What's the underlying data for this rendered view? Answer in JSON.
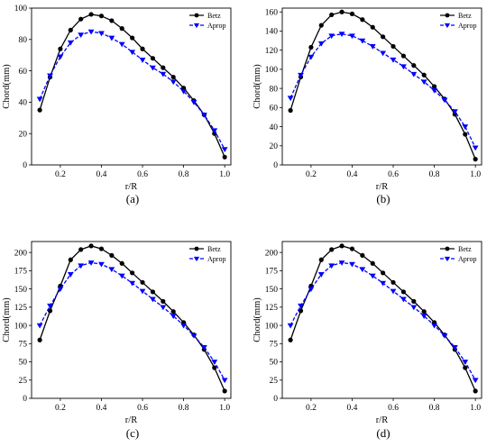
{
  "chart_data": [
    {
      "type": "line",
      "caption": "(a)",
      "xlabel": "r/R",
      "ylabel": "Chord(mm)",
      "xlim": [
        0.06,
        1.03
      ],
      "ylim": [
        0,
        100
      ],
      "xticks": [
        0.2,
        0.4,
        0.6,
        0.8,
        1.0
      ],
      "xtick_labels": [
        "0.2",
        "0.4",
        "0.6",
        "0.8",
        "1.0"
      ],
      "yticks": [
        0,
        20,
        40,
        60,
        80,
        100
      ],
      "ytick_labels": [
        "0",
        "20",
        "40",
        "60",
        "80",
        "100"
      ],
      "legend_position": "top-right",
      "series": [
        {
          "name": "Betz",
          "color": "#000000",
          "marker": "circle",
          "x": [
            0.1,
            0.15,
            0.2,
            0.25,
            0.3,
            0.35,
            0.4,
            0.45,
            0.5,
            0.55,
            0.6,
            0.65,
            0.7,
            0.75,
            0.8,
            0.85,
            0.9,
            0.95,
            1.0
          ],
          "y": [
            35,
            56,
            74,
            86,
            93,
            96,
            95,
            92,
            87,
            81,
            74,
            68,
            62,
            56,
            49,
            41,
            32,
            20,
            5
          ]
        },
        {
          "name": "Aprop",
          "color": "#0000ff",
          "marker": "triangle-down",
          "x": [
            0.1,
            0.15,
            0.2,
            0.25,
            0.3,
            0.35,
            0.4,
            0.45,
            0.5,
            0.55,
            0.6,
            0.65,
            0.7,
            0.75,
            0.8,
            0.85,
            0.9,
            0.95,
            1.0
          ],
          "y": [
            42,
            57,
            69,
            78,
            83,
            85,
            84,
            81,
            77,
            72,
            67,
            62,
            58,
            53,
            47,
            40,
            32,
            22,
            10
          ]
        }
      ]
    },
    {
      "type": "line",
      "caption": "(b)",
      "xlabel": "r/R",
      "ylabel": "Chord(mm)",
      "xlim": [
        0.06,
        1.03
      ],
      "ylim": [
        0,
        164
      ],
      "xticks": [
        0.2,
        0.4,
        0.6,
        0.8,
        1.0
      ],
      "xtick_labels": [
        "0.2",
        "0.4",
        "0.6",
        "0.8",
        "1.0"
      ],
      "yticks": [
        0,
        20,
        40,
        60,
        80,
        100,
        120,
        140,
        160
      ],
      "ytick_labels": [
        "0",
        "20",
        "40",
        "60",
        "80",
        "100",
        "120",
        "140",
        "160"
      ],
      "legend_position": "top-right",
      "series": [
        {
          "name": "Betz",
          "color": "#000000",
          "marker": "circle",
          "x": [
            0.1,
            0.15,
            0.2,
            0.25,
            0.3,
            0.35,
            0.4,
            0.45,
            0.5,
            0.55,
            0.6,
            0.65,
            0.7,
            0.75,
            0.8,
            0.85,
            0.9,
            0.95,
            1.0
          ],
          "y": [
            57,
            92,
            123,
            146,
            157,
            160,
            158,
            152,
            144,
            134,
            124,
            114,
            104,
            94,
            82,
            69,
            53,
            32,
            6
          ]
        },
        {
          "name": "Aprop",
          "color": "#0000ff",
          "marker": "triangle-down",
          "x": [
            0.1,
            0.15,
            0.2,
            0.25,
            0.3,
            0.35,
            0.4,
            0.45,
            0.5,
            0.55,
            0.6,
            0.65,
            0.7,
            0.75,
            0.8,
            0.85,
            0.9,
            0.95,
            1.0
          ],
          "y": [
            70,
            94,
            113,
            127,
            135,
            137,
            135,
            130,
            124,
            117,
            110,
            103,
            95,
            87,
            78,
            68,
            56,
            40,
            18
          ]
        }
      ]
    },
    {
      "type": "line",
      "caption": "(c)",
      "xlabel": "r/R",
      "ylabel": "Chord(mm)",
      "xlim": [
        0.06,
        1.03
      ],
      "ylim": [
        0,
        215
      ],
      "xticks": [
        0.2,
        0.4,
        0.6,
        0.8,
        1.0
      ],
      "xtick_labels": [
        "0.2",
        "0.4",
        "0.6",
        "0.8",
        "1.0"
      ],
      "yticks": [
        0,
        25,
        50,
        75,
        100,
        125,
        150,
        175,
        200
      ],
      "ytick_labels": [
        "0",
        "25",
        "50",
        "75",
        "100",
        "125",
        "150",
        "175",
        "200"
      ],
      "legend_position": "top-right",
      "series": [
        {
          "name": "Betz",
          "color": "#000000",
          "marker": "circle",
          "x": [
            0.1,
            0.15,
            0.2,
            0.25,
            0.3,
            0.35,
            0.4,
            0.45,
            0.5,
            0.55,
            0.6,
            0.65,
            0.7,
            0.75,
            0.8,
            0.85,
            0.9,
            0.95,
            1.0
          ],
          "y": [
            80,
            120,
            154,
            190,
            204,
            209,
            205,
            196,
            185,
            172,
            159,
            146,
            133,
            119,
            104,
            87,
            67,
            42,
            10
          ]
        },
        {
          "name": "Aprop",
          "color": "#0000ff",
          "marker": "triangle-down",
          "x": [
            0.1,
            0.15,
            0.2,
            0.25,
            0.3,
            0.35,
            0.4,
            0.45,
            0.5,
            0.55,
            0.6,
            0.65,
            0.7,
            0.75,
            0.8,
            0.85,
            0.9,
            0.95,
            1.0
          ],
          "y": [
            100,
            127,
            150,
            170,
            182,
            186,
            184,
            177,
            168,
            158,
            147,
            136,
            125,
            113,
            100,
            86,
            70,
            50,
            25
          ]
        }
      ]
    },
    {
      "type": "line",
      "caption": "(d)",
      "xlabel": "r/R",
      "ylabel": "Chord(mm)",
      "xlim": [
        0.06,
        1.03
      ],
      "ylim": [
        0,
        215
      ],
      "xticks": [
        0.2,
        0.4,
        0.6,
        0.8,
        1.0
      ],
      "xtick_labels": [
        "0.2",
        "0.4",
        "0.6",
        "0.8",
        "1.0"
      ],
      "yticks": [
        0,
        25,
        50,
        75,
        100,
        125,
        150,
        175,
        200
      ],
      "ytick_labels": [
        "0",
        "25",
        "50",
        "75",
        "100",
        "125",
        "150",
        "175",
        "200"
      ],
      "legend_position": "top-right",
      "series": [
        {
          "name": "Betz",
          "color": "#000000",
          "marker": "circle",
          "x": [
            0.1,
            0.15,
            0.2,
            0.25,
            0.3,
            0.35,
            0.4,
            0.45,
            0.5,
            0.55,
            0.6,
            0.65,
            0.7,
            0.75,
            0.8,
            0.85,
            0.9,
            0.95,
            1.0
          ],
          "y": [
            80,
            120,
            154,
            190,
            204,
            209,
            205,
            196,
            185,
            172,
            159,
            146,
            133,
            119,
            104,
            87,
            67,
            42,
            10
          ]
        },
        {
          "name": "Aprop",
          "color": "#0000ff",
          "marker": "triangle-down",
          "x": [
            0.1,
            0.15,
            0.2,
            0.25,
            0.3,
            0.35,
            0.4,
            0.45,
            0.5,
            0.55,
            0.6,
            0.65,
            0.7,
            0.75,
            0.8,
            0.85,
            0.9,
            0.95,
            1.0
          ],
          "y": [
            100,
            127,
            150,
            170,
            182,
            186,
            184,
            177,
            168,
            158,
            147,
            136,
            125,
            113,
            100,
            86,
            70,
            50,
            25
          ]
        }
      ]
    }
  ]
}
